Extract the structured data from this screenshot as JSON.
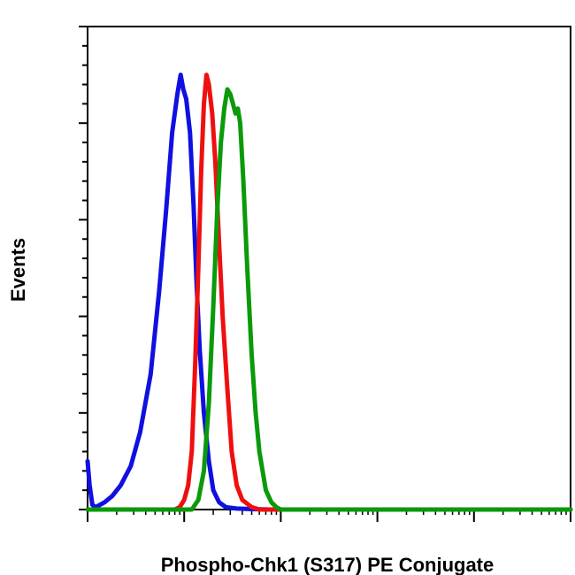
{
  "chart_data": {
    "type": "line",
    "title": "",
    "xlabel": "Phospho-Chk1 (S317) PE Conjugate",
    "ylabel": "Events",
    "x_scale": "log",
    "xlim": [
      1,
      100000
    ],
    "ylim": [
      0,
      100
    ],
    "grid": false,
    "legend": "none",
    "series": [
      {
        "color": "#1010e0",
        "x": [
          1,
          1.05,
          1.12,
          1.2,
          1.3,
          1.5,
          1.8,
          2.2,
          2.8,
          3.5,
          4.5,
          5.5,
          6.5,
          7.5,
          8.5,
          9.2,
          9.8,
          10.5,
          11.5,
          12.5,
          13.5,
          14.5,
          16,
          18,
          20,
          23,
          27,
          35,
          50,
          80,
          100000
        ],
        "y": [
          10,
          5,
          1,
          0.5,
          0.8,
          1.5,
          2.8,
          5,
          9,
          16,
          28,
          45,
          62,
          78,
          86,
          90,
          87,
          85,
          78,
          63,
          46,
          33,
          20,
          10,
          4,
          1.5,
          0.5,
          0.2,
          0.1,
          0,
          0
        ]
      },
      {
        "color": "#ee1010",
        "x": [
          1,
          8,
          9,
          10,
          11,
          12,
          13,
          14,
          15,
          16,
          17,
          18,
          19.5,
          21,
          23,
          25,
          28,
          31,
          35,
          40,
          50,
          60,
          100000
        ],
        "y": [
          0,
          0,
          0.5,
          2,
          5,
          12,
          30,
          50,
          70,
          84,
          90,
          88,
          82,
          72,
          55,
          40,
          25,
          12,
          5,
          2,
          0.5,
          0,
          0
        ]
      },
      {
        "color": "#0a9a0a",
        "x": [
          1,
          12,
          14,
          16,
          18,
          20,
          22,
          24,
          26,
          28,
          30,
          32,
          34,
          36,
          38,
          41,
          45,
          50,
          55,
          60,
          70,
          80,
          90,
          100,
          100000
        ],
        "y": [
          0,
          0,
          2,
          8,
          22,
          42,
          62,
          76,
          83,
          87,
          86,
          84,
          82,
          83,
          80,
          68,
          50,
          32,
          20,
          12,
          4,
          1.5,
          0.5,
          0,
          0
        ]
      }
    ]
  }
}
